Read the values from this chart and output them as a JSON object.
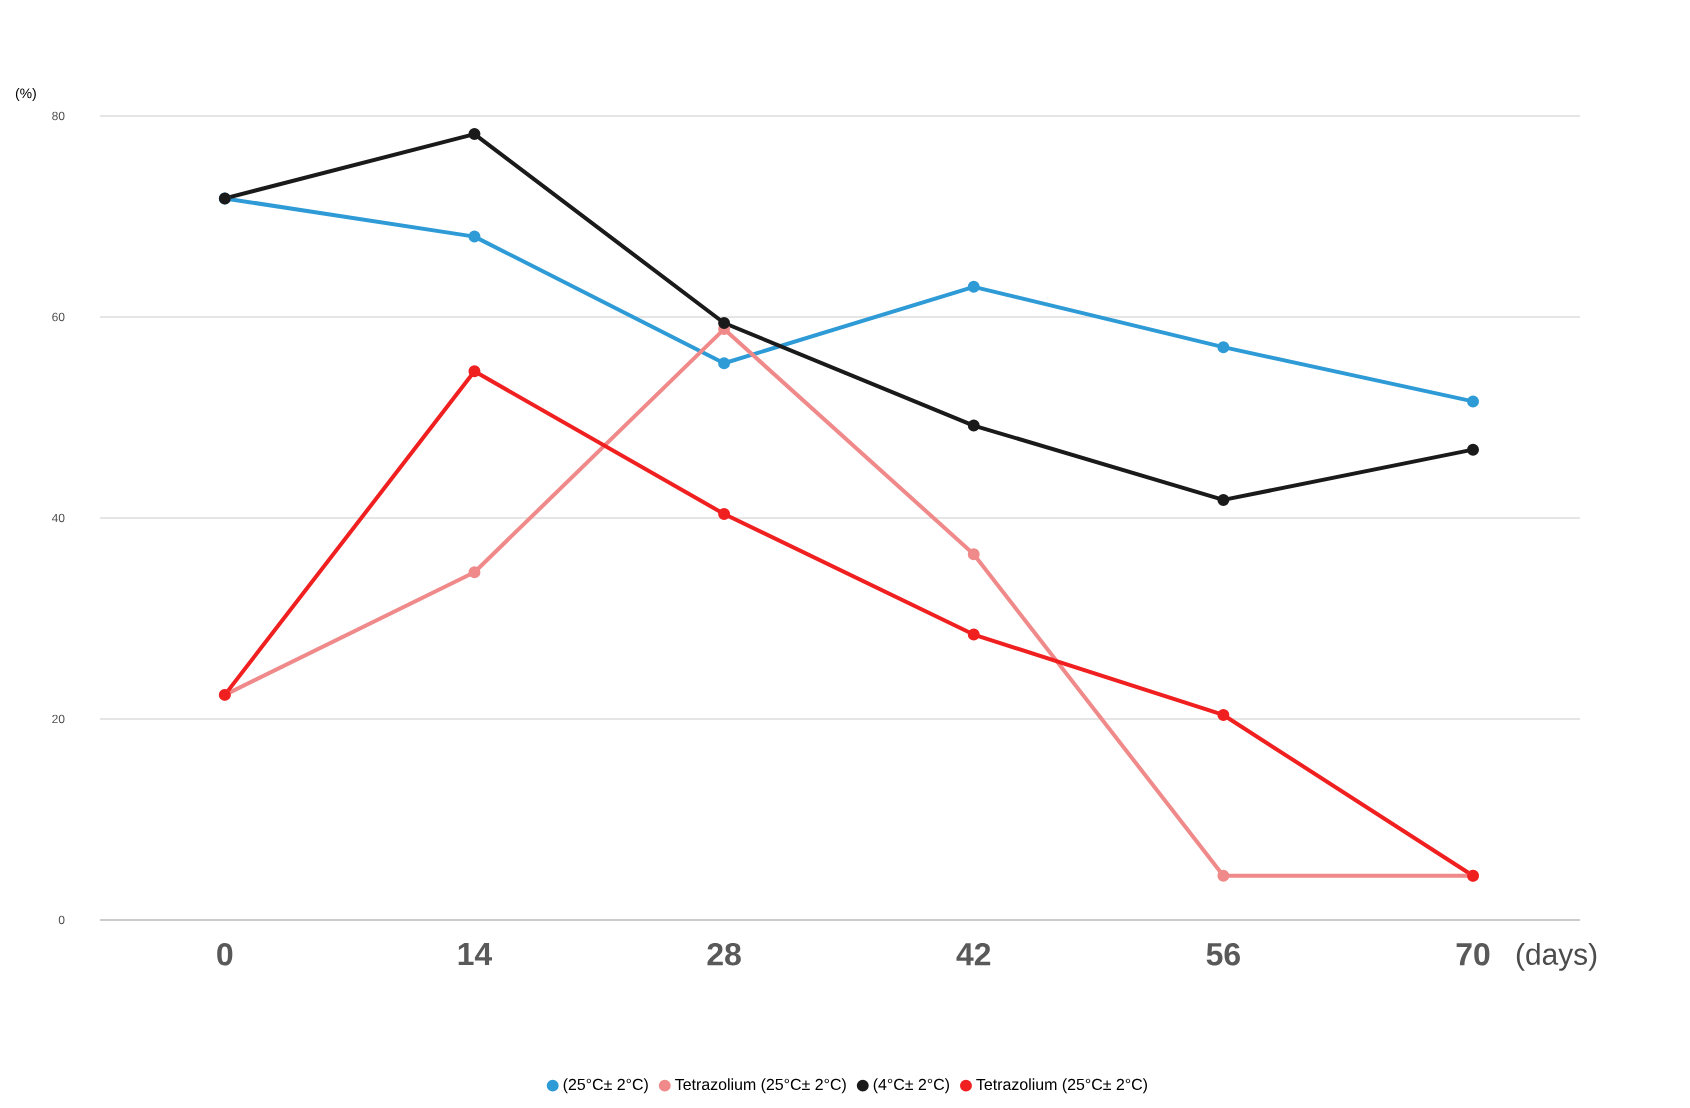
{
  "chart_data": {
    "type": "line",
    "ylabel": "(%)",
    "xlabel": "(days)",
    "x": [
      0,
      14,
      28,
      42,
      56,
      70
    ],
    "xlim": [
      -7,
      76
    ],
    "xticks": [
      0,
      14,
      28,
      42,
      56,
      70
    ],
    "ylim": [
      0,
      80
    ],
    "yticks": [
      0,
      20,
      40,
      60,
      80
    ],
    "grid": "y",
    "legend": "bottom",
    "marker": "circle",
    "line_style": "solid",
    "series": [
      {
        "name": "(25°C± 2°C)",
        "color": "#2e9bd6",
        "values": [
          71.8,
          68,
          55.4,
          63,
          57,
          51.6
        ]
      },
      {
        "name": "Tetrazolium (25°C± 2°C)",
        "color": "#f08a8a",
        "values": [
          22.4,
          34.6,
          58.8,
          36.4,
          4.4,
          4.4
        ]
      },
      {
        "name": "(4°C± 2°C)",
        "color": "#1a1a1a",
        "values": [
          71.8,
          78.2,
          59.4,
          49.2,
          41.8,
          46.8
        ]
      },
      {
        "name": "Tetrazolium (25°C± 2°C)",
        "color": "#f02020",
        "values": [
          22.4,
          54.6,
          40.4,
          28.4,
          20.4,
          4.4
        ]
      }
    ]
  }
}
